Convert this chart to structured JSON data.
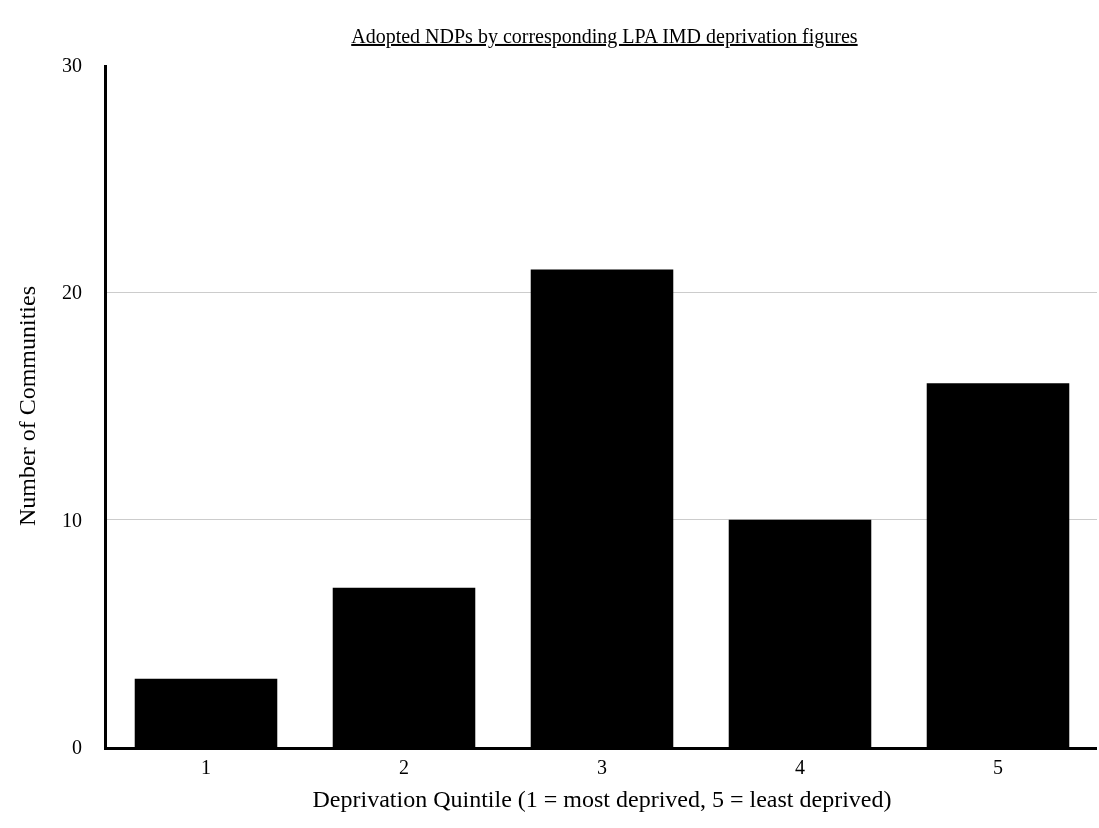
{
  "chart_data": {
    "type": "bar",
    "title": "Adopted NDPs by corresponding LPA IMD deprivation figures",
    "xlabel": "Deprivation Quintile (1 = most deprived, 5 = least deprived)",
    "ylabel": "Number of Communities",
    "categories": [
      "1",
      "2",
      "3",
      "4",
      "5"
    ],
    "values": [
      3,
      7,
      21,
      10,
      16
    ],
    "color": "#000000",
    "ylim": [
      0,
      30
    ],
    "yticks": [
      0,
      10,
      20,
      30
    ],
    "grid": "y"
  }
}
